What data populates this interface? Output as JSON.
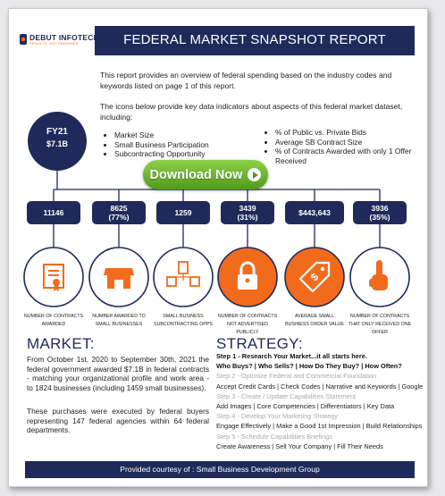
{
  "header": {
    "logo": "DEBUT INFOTECH",
    "tagline": "RESULTS, NOT PROMISES",
    "title": "FEDERAL MARKET SNAPSHOT REPORT"
  },
  "intro": [
    "This report provides an overview of federal spending based on the industry codes and keywords listed on page 1 of this report.",
    "The icons below provide key data indicators about aspects of this federal market dataset, including:"
  ],
  "total": {
    "year": "FY21",
    "amount": "$7.1B"
  },
  "indicators": {
    "left": [
      "Market Size",
      "Small Business Participation",
      "Subcontracting Opportunity"
    ],
    "right": [
      "% of Public vs. Private Bids",
      "Average SB Contract Size",
      "% of Contracts Awarded with only 1 Offer Received"
    ]
  },
  "button": "Download Now",
  "stats": [
    {
      "value": "11146",
      "label": "NUMBER OF CONTRACTS AWARDED"
    },
    {
      "value": "8625",
      "share": "(77%)",
      "label": "NUMBER AWARDED TO SMALL BUSINESSES"
    },
    {
      "value": "1259",
      "label": "SMALL BUSINESS SUBCONTRACTING OPPS"
    },
    {
      "value": "3439",
      "share": "(31%)",
      "label": "NUMBER OF CONTRACTS NOT ADVERTISED PUBLICLY"
    },
    {
      "value": "$443,643",
      "label": "AVERAGE SMALL BUSINESS ORDER VALUE"
    },
    {
      "value": "3936",
      "share": "(35%)",
      "label": "NUMBER OF CONTRACTS THAT ONLY RECEIVED ONE OFFER"
    }
  ],
  "market": {
    "heading": "MARKET:",
    "paragraphs": [
      "From October 1st, 2020 to September 30th, 2021 the federal government awarded $7.1B in federal contracts - matching your organizational profile and work area - to 1824 businesses (including 1459 small businesses).",
      "These purchases were executed by federal buyers representing 147 federal agencies within 64 federal departments."
    ]
  },
  "strategy": {
    "heading": "STRATEGY:",
    "lines": [
      {
        "text": "Step 1 - Research Your Market...it all starts here.",
        "style": "bold"
      },
      {
        "text": "Who Buys? | Who Sells? | How Do They Buy? | How Often?",
        "style": "bold"
      },
      {
        "text": "Step 2 - Optimize Federal and Commercial Foundation",
        "style": "muted"
      },
      {
        "text": "Accept Credit Cards | Check Codes | Narrative and Keywords | Google",
        "style": "plain"
      },
      {
        "text": "Step 3 - Create / Update Capabilities Statement",
        "style": "muted"
      },
      {
        "text": "Add Images | Core Competencies | Differentiators | Key Data",
        "style": "plain"
      },
      {
        "text": "Step 4 - Develop Your Marketing Strategy",
        "style": "muted"
      },
      {
        "text": "Engage Effectively | Make a Good 1st Impression | Build Relationships",
        "style": "plain"
      },
      {
        "text": "Step 5 - Schedule Capabilities Briefings",
        "style": "muted"
      },
      {
        "text": "Create Awareness | Sell Your Company | Fill Their Needs",
        "style": "plain"
      }
    ]
  },
  "footer": "Provided courtesy of : Small Business Development Group"
}
